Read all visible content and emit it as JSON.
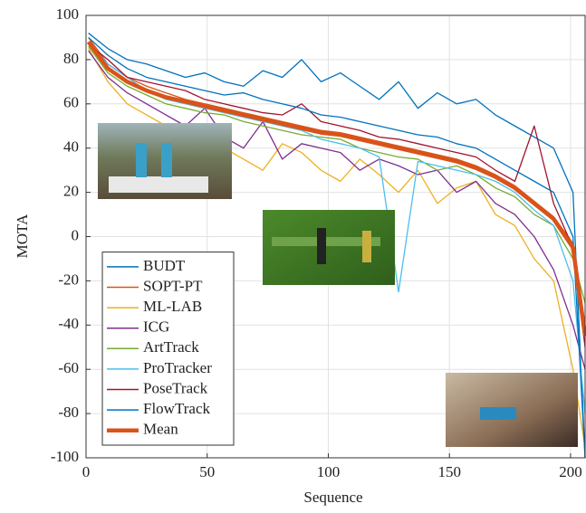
{
  "chart_data": {
    "type": "line",
    "x_label": "Sequence",
    "y_label": "MOTA",
    "x": [
      1,
      9,
      17,
      25,
      33,
      41,
      49,
      57,
      65,
      73,
      81,
      89,
      97,
      105,
      113,
      121,
      129,
      137,
      145,
      153,
      161,
      169,
      177,
      185,
      193,
      201,
      206
    ],
    "series": [
      {
        "name": "BUDT",
        "color": "#0072bd",
        "values": [
          92,
          85,
          80,
          78,
          75,
          72,
          74,
          70,
          68,
          75,
          72,
          80,
          70,
          74,
          68,
          62,
          70,
          58,
          65,
          60,
          62,
          55,
          50,
          45,
          40,
          20,
          -100
        ]
      },
      {
        "name": "SOPT-PT",
        "color": "#d95319",
        "values": [
          90,
          78,
          72,
          68,
          65,
          62,
          60,
          58,
          56,
          54,
          52,
          50,
          48,
          47,
          45,
          43,
          41,
          39,
          37,
          35,
          32,
          28,
          23,
          16,
          9,
          -3,
          -40
        ]
      },
      {
        "name": "ML-LAB",
        "color": "#edb120",
        "values": [
          85,
          70,
          60,
          55,
          50,
          45,
          48,
          40,
          35,
          30,
          42,
          38,
          30,
          25,
          35,
          28,
          20,
          30,
          15,
          22,
          25,
          10,
          5,
          -10,
          -20,
          -60,
          -95
        ]
      },
      {
        "name": "ICG",
        "color": "#7e2f8e",
        "values": [
          84,
          72,
          65,
          60,
          55,
          50,
          58,
          45,
          40,
          52,
          35,
          42,
          40,
          38,
          30,
          35,
          32,
          28,
          30,
          20,
          25,
          15,
          10,
          0,
          -15,
          -40,
          -60
        ]
      },
      {
        "name": "ArtTrack",
        "color": "#77ac30",
        "values": [
          86,
          74,
          68,
          64,
          60,
          58,
          56,
          55,
          52,
          50,
          48,
          46,
          45,
          44,
          40,
          38,
          36,
          35,
          30,
          32,
          28,
          22,
          18,
          10,
          5,
          -10,
          -30
        ]
      },
      {
        "name": "ProTracker",
        "color": "#4dbeee",
        "values": [
          88,
          78,
          72,
          66,
          62,
          60,
          58,
          56,
          54,
          52,
          50,
          48,
          44,
          42,
          40,
          36,
          -25,
          34,
          32,
          30,
          28,
          25,
          20,
          12,
          5,
          -20,
          -80
        ]
      },
      {
        "name": "PoseTrack",
        "color": "#a2142f",
        "values": [
          87,
          80,
          72,
          70,
          68,
          66,
          62,
          60,
          58,
          56,
          55,
          60,
          52,
          50,
          48,
          45,
          44,
          42,
          40,
          38,
          36,
          30,
          25,
          50,
          15,
          -5,
          -50
        ]
      },
      {
        "name": "FlowTrack",
        "color": "#0072bd",
        "values": [
          90,
          82,
          76,
          72,
          70,
          68,
          66,
          64,
          65,
          62,
          60,
          58,
          55,
          54,
          52,
          50,
          48,
          46,
          45,
          42,
          40,
          35,
          30,
          25,
          20,
          0,
          -100
        ]
      },
      {
        "name": "Mean",
        "color": "#d95319",
        "values": [
          88,
          76,
          70,
          66,
          63,
          61,
          59,
          57,
          55,
          53,
          51,
          49,
          47,
          46,
          44,
          42,
          40,
          38,
          36,
          34,
          31,
          27,
          22,
          15,
          8,
          -5,
          -45
        ]
      }
    ],
    "xlim": [
      0,
      206
    ],
    "xticks": [
      0,
      50,
      100,
      150,
      200
    ],
    "ylim": [
      -100,
      100
    ],
    "yticks": [
      -100,
      -80,
      -60,
      -40,
      -20,
      0,
      20,
      40,
      60,
      80,
      100
    ],
    "grid": true,
    "legend": "lower-left"
  }
}
